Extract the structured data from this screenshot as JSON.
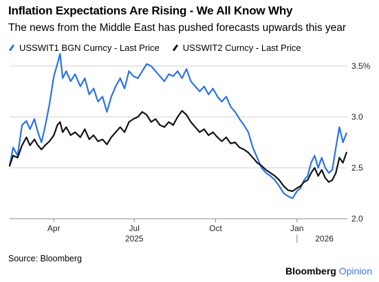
{
  "header": {
    "title": "Inflation Expectations Are Rising - We All Know Why",
    "subtitle": "The news from the Middle East has pushed forecasts upwards this year"
  },
  "footer": {
    "source": "Source: Bloomberg",
    "brand_name": "Bloomberg",
    "brand_suffix": "Opinion"
  },
  "colors": {
    "series1": "#2a72e6",
    "series2": "#111111",
    "grid": "#d0d0d0",
    "axis": "#888888",
    "brand_accent": "#3f78d6"
  },
  "chart_data": {
    "type": "line",
    "title": "Inflation Expectations Are Rising - We All Know Why",
    "subtitle": "The news from the Middle East has pushed forecasts upwards this year",
    "xlabel": "",
    "ylabel": "",
    "x_range": [
      "2025-02-10",
      "2026-02-27"
    ],
    "ylim": [
      2.0,
      3.5
    ],
    "y_ticks": [
      {
        "value": 3.5,
        "label": "3.5%"
      },
      {
        "value": 3.0,
        "label": "3.0"
      },
      {
        "value": 2.5,
        "label": "2.5"
      },
      {
        "value": 2.0,
        "label": "2.0"
      }
    ],
    "x_ticks": [
      {
        "date": "2025-04-01",
        "label": "Apr"
      },
      {
        "date": "2025-07-01",
        "label": "Jul"
      },
      {
        "date": "2025-10-01",
        "label": "Oct"
      },
      {
        "date": "2026-01-01",
        "label": "Jan"
      }
    ],
    "year_labels": [
      {
        "date": "2025-07-01",
        "label": "2025"
      },
      {
        "date": "2026-02-01",
        "label": "2026"
      }
    ],
    "year_divider_date": "2026-01-01",
    "grid": true,
    "legend_position": "top-left",
    "series": [
      {
        "name": "USSWIT1 BGN Curncy - Last Price",
        "points": [
          [
            "2025-02-10",
            2.52
          ],
          [
            "2025-02-14",
            2.7
          ],
          [
            "2025-02-19",
            2.62
          ],
          [
            "2025-02-24",
            2.92
          ],
          [
            "2025-03-01",
            2.96
          ],
          [
            "2025-03-05",
            2.88
          ],
          [
            "2025-03-10",
            2.98
          ],
          [
            "2025-03-14",
            2.85
          ],
          [
            "2025-03-18",
            2.75
          ],
          [
            "2025-03-22",
            2.9
          ],
          [
            "2025-03-27",
            3.12
          ],
          [
            "2025-04-01",
            3.4
          ],
          [
            "2025-04-05",
            3.52
          ],
          [
            "2025-04-08",
            3.62
          ],
          [
            "2025-04-11",
            3.38
          ],
          [
            "2025-04-15",
            3.45
          ],
          [
            "2025-04-20",
            3.35
          ],
          [
            "2025-04-25",
            3.42
          ],
          [
            "2025-05-01",
            3.3
          ],
          [
            "2025-05-06",
            3.38
          ],
          [
            "2025-05-11",
            3.22
          ],
          [
            "2025-05-16",
            3.28
          ],
          [
            "2025-05-21",
            3.15
          ],
          [
            "2025-05-26",
            3.2
          ],
          [
            "2025-05-31",
            3.05
          ],
          [
            "2025-06-05",
            3.2
          ],
          [
            "2025-06-10",
            3.3
          ],
          [
            "2025-06-15",
            3.38
          ],
          [
            "2025-06-20",
            3.28
          ],
          [
            "2025-06-25",
            3.45
          ],
          [
            "2025-06-30",
            3.4
          ],
          [
            "2025-07-05",
            3.38
          ],
          [
            "2025-07-10",
            3.45
          ],
          [
            "2025-07-15",
            3.52
          ],
          [
            "2025-07-20",
            3.5
          ],
          [
            "2025-07-25",
            3.45
          ],
          [
            "2025-07-30",
            3.4
          ],
          [
            "2025-08-04",
            3.35
          ],
          [
            "2025-08-09",
            3.42
          ],
          [
            "2025-08-14",
            3.4
          ],
          [
            "2025-08-19",
            3.45
          ],
          [
            "2025-08-24",
            3.38
          ],
          [
            "2025-08-29",
            3.47
          ],
          [
            "2025-09-03",
            3.35
          ],
          [
            "2025-09-08",
            3.3
          ],
          [
            "2025-09-13",
            3.25
          ],
          [
            "2025-09-18",
            3.3
          ],
          [
            "2025-09-23",
            3.22
          ],
          [
            "2025-09-28",
            3.28
          ],
          [
            "2025-10-03",
            3.2
          ],
          [
            "2025-10-08",
            3.15
          ],
          [
            "2025-10-13",
            3.2
          ],
          [
            "2025-10-18",
            3.1
          ],
          [
            "2025-10-23",
            3.05
          ],
          [
            "2025-10-28",
            2.98
          ],
          [
            "2025-11-02",
            2.92
          ],
          [
            "2025-11-07",
            2.85
          ],
          [
            "2025-11-12",
            2.7
          ],
          [
            "2025-11-17",
            2.6
          ],
          [
            "2025-11-22",
            2.5
          ],
          [
            "2025-11-27",
            2.45
          ],
          [
            "2025-12-02",
            2.42
          ],
          [
            "2025-12-07",
            2.38
          ],
          [
            "2025-12-12",
            2.32
          ],
          [
            "2025-12-17",
            2.25
          ],
          [
            "2025-12-22",
            2.22
          ],
          [
            "2025-12-27",
            2.2
          ],
          [
            "2026-01-01",
            2.27
          ],
          [
            "2026-01-05",
            2.3
          ],
          [
            "2026-01-09",
            2.38
          ],
          [
            "2026-01-13",
            2.42
          ],
          [
            "2026-01-17",
            2.55
          ],
          [
            "2026-01-21",
            2.62
          ],
          [
            "2026-01-25",
            2.5
          ],
          [
            "2026-01-29",
            2.6
          ],
          [
            "2026-02-02",
            2.5
          ],
          [
            "2026-02-06",
            2.45
          ],
          [
            "2026-02-10",
            2.48
          ],
          [
            "2026-02-14",
            2.7
          ],
          [
            "2026-02-18",
            2.9
          ],
          [
            "2026-02-22",
            2.75
          ],
          [
            "2026-02-26",
            2.84
          ]
        ]
      },
      {
        "name": "USSWIT2 Curncy - Last Price",
        "points": [
          [
            "2025-02-10",
            2.52
          ],
          [
            "2025-02-14",
            2.62
          ],
          [
            "2025-02-19",
            2.6
          ],
          [
            "2025-02-24",
            2.72
          ],
          [
            "2025-03-01",
            2.8
          ],
          [
            "2025-03-05",
            2.72
          ],
          [
            "2025-03-10",
            2.78
          ],
          [
            "2025-03-14",
            2.72
          ],
          [
            "2025-03-18",
            2.68
          ],
          [
            "2025-03-22",
            2.72
          ],
          [
            "2025-03-27",
            2.76
          ],
          [
            "2025-04-01",
            2.82
          ],
          [
            "2025-04-05",
            2.92
          ],
          [
            "2025-04-08",
            2.95
          ],
          [
            "2025-04-11",
            2.85
          ],
          [
            "2025-04-15",
            2.9
          ],
          [
            "2025-04-20",
            2.82
          ],
          [
            "2025-04-25",
            2.85
          ],
          [
            "2025-05-01",
            2.8
          ],
          [
            "2025-05-06",
            2.88
          ],
          [
            "2025-05-11",
            2.78
          ],
          [
            "2025-05-16",
            2.82
          ],
          [
            "2025-05-21",
            2.76
          ],
          [
            "2025-05-26",
            2.78
          ],
          [
            "2025-05-31",
            2.73
          ],
          [
            "2025-06-05",
            2.8
          ],
          [
            "2025-06-10",
            2.85
          ],
          [
            "2025-06-15",
            2.9
          ],
          [
            "2025-06-20",
            2.85
          ],
          [
            "2025-06-25",
            2.95
          ],
          [
            "2025-06-30",
            2.98
          ],
          [
            "2025-07-05",
            3.0
          ],
          [
            "2025-07-10",
            3.05
          ],
          [
            "2025-07-15",
            3.02
          ],
          [
            "2025-07-20",
            2.95
          ],
          [
            "2025-07-25",
            2.98
          ],
          [
            "2025-07-30",
            2.92
          ],
          [
            "2025-08-04",
            2.9
          ],
          [
            "2025-08-09",
            2.95
          ],
          [
            "2025-08-14",
            2.92
          ],
          [
            "2025-08-19",
            3.0
          ],
          [
            "2025-08-24",
            3.06
          ],
          [
            "2025-08-29",
            3.02
          ],
          [
            "2025-09-03",
            2.95
          ],
          [
            "2025-09-08",
            2.9
          ],
          [
            "2025-09-13",
            2.85
          ],
          [
            "2025-09-18",
            2.88
          ],
          [
            "2025-09-23",
            2.82
          ],
          [
            "2025-09-28",
            2.85
          ],
          [
            "2025-10-03",
            2.8
          ],
          [
            "2025-10-08",
            2.76
          ],
          [
            "2025-10-13",
            2.8
          ],
          [
            "2025-10-18",
            2.74
          ],
          [
            "2025-10-23",
            2.75
          ],
          [
            "2025-10-28",
            2.7
          ],
          [
            "2025-11-02",
            2.68
          ],
          [
            "2025-11-07",
            2.65
          ],
          [
            "2025-11-12",
            2.6
          ],
          [
            "2025-11-17",
            2.55
          ],
          [
            "2025-11-22",
            2.52
          ],
          [
            "2025-11-27",
            2.48
          ],
          [
            "2025-12-02",
            2.45
          ],
          [
            "2025-12-07",
            2.42
          ],
          [
            "2025-12-12",
            2.38
          ],
          [
            "2025-12-17",
            2.32
          ],
          [
            "2025-12-22",
            2.28
          ],
          [
            "2025-12-27",
            2.27
          ],
          [
            "2026-01-01",
            2.3
          ],
          [
            "2026-01-05",
            2.32
          ],
          [
            "2026-01-09",
            2.36
          ],
          [
            "2026-01-13",
            2.38
          ],
          [
            "2026-01-17",
            2.45
          ],
          [
            "2026-01-21",
            2.5
          ],
          [
            "2026-01-25",
            2.42
          ],
          [
            "2026-01-29",
            2.48
          ],
          [
            "2026-02-02",
            2.4
          ],
          [
            "2026-02-06",
            2.36
          ],
          [
            "2026-02-10",
            2.38
          ],
          [
            "2026-02-14",
            2.45
          ],
          [
            "2026-02-18",
            2.6
          ],
          [
            "2026-02-22",
            2.55
          ],
          [
            "2026-02-26",
            2.65
          ]
        ]
      }
    ]
  }
}
